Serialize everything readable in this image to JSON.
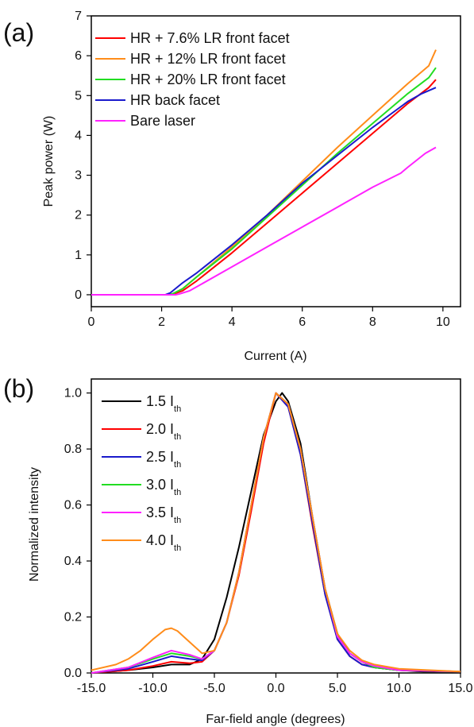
{
  "chart_data": [
    {
      "type": "line",
      "panel_label": "(a)",
      "xlabel": "Current (A)",
      "ylabel": "Peak power (W)",
      "xlim": [
        0,
        10.5
      ],
      "ylim": [
        -0.3,
        7
      ],
      "xticks": [
        0,
        2,
        4,
        6,
        8,
        10
      ],
      "yticks": [
        0,
        1,
        2,
        3,
        4,
        5,
        6,
        7
      ],
      "legend_position": "top-left",
      "series": [
        {
          "name": "HR + 7.6% LR front facet",
          "color": "#ff0000",
          "points": [
            [
              0,
              0
            ],
            [
              2.2,
              0
            ],
            [
              2.3,
              0.01
            ],
            [
              2.6,
              0.1
            ],
            [
              3,
              0.35
            ],
            [
              4,
              1.05
            ],
            [
              5,
              1.8
            ],
            [
              6,
              2.55
            ],
            [
              7,
              3.3
            ],
            [
              8,
              4.05
            ],
            [
              9,
              4.8
            ],
            [
              9.6,
              5.2
            ],
            [
              9.8,
              5.4
            ]
          ]
        },
        {
          "name": "HR + 12% LR front facet",
          "color": "#ff8c1a",
          "points": [
            [
              0,
              0
            ],
            [
              2.2,
              0
            ],
            [
              2.3,
              0.02
            ],
            [
              2.6,
              0.15
            ],
            [
              3,
              0.45
            ],
            [
              4,
              1.2
            ],
            [
              5,
              2.0
            ],
            [
              6,
              2.85
            ],
            [
              7,
              3.7
            ],
            [
              8,
              4.5
            ],
            [
              9,
              5.3
            ],
            [
              9.6,
              5.75
            ],
            [
              9.8,
              6.15
            ]
          ]
        },
        {
          "name": "HR + 20% LR front facet",
          "color": "#22dd22",
          "points": [
            [
              0,
              0
            ],
            [
              2.2,
              0
            ],
            [
              2.3,
              0.02
            ],
            [
              2.6,
              0.15
            ],
            [
              3,
              0.45
            ],
            [
              4,
              1.15
            ],
            [
              5,
              1.95
            ],
            [
              6,
              2.75
            ],
            [
              7,
              3.55
            ],
            [
              8,
              4.3
            ],
            [
              9,
              5.05
            ],
            [
              9.6,
              5.45
            ],
            [
              9.8,
              5.7
            ]
          ]
        },
        {
          "name": "HR back facet",
          "color": "#1a1acc",
          "points": [
            [
              0,
              0
            ],
            [
              2.1,
              0
            ],
            [
              2.25,
              0.05
            ],
            [
              2.6,
              0.3
            ],
            [
              3,
              0.55
            ],
            [
              4,
              1.25
            ],
            [
              5,
              2.0
            ],
            [
              6,
              2.8
            ],
            [
              7,
              3.5
            ],
            [
              8,
              4.2
            ],
            [
              9,
              4.85
            ],
            [
              9.4,
              5.05
            ],
            [
              9.8,
              5.2
            ]
          ]
        },
        {
          "name": "Bare laser",
          "color": "#ff22ff",
          "points": [
            [
              0,
              0
            ],
            [
              2.4,
              0
            ],
            [
              2.5,
              0.02
            ],
            [
              2.8,
              0.1
            ],
            [
              3,
              0.2
            ],
            [
              4,
              0.7
            ],
            [
              5,
              1.2
            ],
            [
              6,
              1.7
            ],
            [
              7,
              2.2
            ],
            [
              8,
              2.7
            ],
            [
              8.8,
              3.05
            ],
            [
              9.0,
              3.2
            ],
            [
              9.5,
              3.55
            ],
            [
              9.8,
              3.7
            ]
          ]
        }
      ]
    },
    {
      "type": "line",
      "panel_label": "(b)",
      "xlabel": "Far-field angle (degrees)",
      "ylabel": "Normalized intensity",
      "xlim": [
        -15,
        15
      ],
      "ylim": [
        0,
        1.05
      ],
      "xticks": [
        -15,
        -10,
        -5,
        0,
        5,
        10,
        15
      ],
      "yticks": [
        0.0,
        0.2,
        0.4,
        0.6,
        0.8,
        1.0
      ],
      "legend_position": "top-left",
      "series": [
        {
          "name": "1.5 I",
          "subscript": "th",
          "color": "#000000",
          "points": [
            [
              -15,
              0.0
            ],
            [
              -12,
              0.01
            ],
            [
              -10,
              0.02
            ],
            [
              -8.5,
              0.03
            ],
            [
              -7,
              0.03
            ],
            [
              -6,
              0.05
            ],
            [
              -5,
              0.12
            ],
            [
              -4,
              0.27
            ],
            [
              -3,
              0.45
            ],
            [
              -2,
              0.65
            ],
            [
              -1,
              0.85
            ],
            [
              0,
              0.97
            ],
            [
              0.5,
              1.0
            ],
            [
              1,
              0.97
            ],
            [
              2,
              0.82
            ],
            [
              3,
              0.55
            ],
            [
              4,
              0.3
            ],
            [
              5,
              0.14
            ],
            [
              6,
              0.07
            ],
            [
              7,
              0.04
            ],
            [
              8,
              0.02
            ],
            [
              10,
              0.01
            ],
            [
              12,
              0.005
            ],
            [
              15,
              0.005
            ]
          ]
        },
        {
          "name": "2.0 I",
          "subscript": "th",
          "color": "#ff0000",
          "points": [
            [
              -15,
              0.0
            ],
            [
              -12,
              0.01
            ],
            [
              -10,
              0.025
            ],
            [
              -8.5,
              0.04
            ],
            [
              -7,
              0.035
            ],
            [
              -6,
              0.04
            ],
            [
              -5,
              0.08
            ],
            [
              -4,
              0.18
            ],
            [
              -3,
              0.35
            ],
            [
              -2,
              0.58
            ],
            [
              -1,
              0.82
            ],
            [
              0,
              1.0
            ],
            [
              1,
              0.95
            ],
            [
              2,
              0.78
            ],
            [
              3,
              0.52
            ],
            [
              4,
              0.28
            ],
            [
              5,
              0.12
            ],
            [
              6,
              0.06
            ],
            [
              7,
              0.03
            ],
            [
              8,
              0.02
            ],
            [
              10,
              0.01
            ],
            [
              15,
              0.005
            ]
          ]
        },
        {
          "name": "2.5 I",
          "subscript": "th",
          "color": "#1a1acc",
          "points": [
            [
              -15,
              0.0
            ],
            [
              -12,
              0.015
            ],
            [
              -10,
              0.04
            ],
            [
              -8.5,
              0.06
            ],
            [
              -7,
              0.05
            ],
            [
              -6,
              0.045
            ],
            [
              -5,
              0.08
            ],
            [
              -4,
              0.18
            ],
            [
              -3,
              0.36
            ],
            [
              -2,
              0.6
            ],
            [
              -1,
              0.84
            ],
            [
              0,
              1.0
            ],
            [
              1,
              0.95
            ],
            [
              2,
              0.78
            ],
            [
              3,
              0.53
            ],
            [
              4,
              0.28
            ],
            [
              5,
              0.12
            ],
            [
              6,
              0.06
            ],
            [
              7,
              0.03
            ],
            [
              8,
              0.02
            ],
            [
              10,
              0.01
            ],
            [
              15,
              0.005
            ]
          ]
        },
        {
          "name": "3.0 I",
          "subscript": "th",
          "color": "#22dd22",
          "points": [
            [
              -15,
              0.0
            ],
            [
              -12,
              0.02
            ],
            [
              -10,
              0.05
            ],
            [
              -8.5,
              0.07
            ],
            [
              -7,
              0.06
            ],
            [
              -6,
              0.05
            ],
            [
              -5,
              0.08
            ],
            [
              -4,
              0.18
            ],
            [
              -3,
              0.36
            ],
            [
              -2,
              0.6
            ],
            [
              -1,
              0.84
            ],
            [
              0,
              1.0
            ],
            [
              1,
              0.96
            ],
            [
              2,
              0.8
            ],
            [
              3,
              0.55
            ],
            [
              4,
              0.3
            ],
            [
              5,
              0.13
            ],
            [
              6,
              0.07
            ],
            [
              7,
              0.04
            ],
            [
              8,
              0.02
            ],
            [
              10,
              0.01
            ],
            [
              15,
              0.005
            ]
          ]
        },
        {
          "name": "3.5 I",
          "subscript": "th",
          "color": "#ff22ff",
          "points": [
            [
              -15,
              0.0
            ],
            [
              -12,
              0.02
            ],
            [
              -10,
              0.055
            ],
            [
              -8.5,
              0.08
            ],
            [
              -7,
              0.065
            ],
            [
              -6,
              0.05
            ],
            [
              -5,
              0.08
            ],
            [
              -4,
              0.18
            ],
            [
              -3,
              0.36
            ],
            [
              -2,
              0.6
            ],
            [
              -1,
              0.84
            ],
            [
              0,
              1.0
            ],
            [
              1,
              0.96
            ],
            [
              2,
              0.8
            ],
            [
              3,
              0.55
            ],
            [
              4,
              0.3
            ],
            [
              5,
              0.13
            ],
            [
              6,
              0.07
            ],
            [
              7,
              0.04
            ],
            [
              8,
              0.025
            ],
            [
              10,
              0.01
            ],
            [
              15,
              0.005
            ]
          ]
        },
        {
          "name": "4.0 I",
          "subscript": "th",
          "color": "#ff8c1a",
          "points": [
            [
              -15,
              0.01
            ],
            [
              -13,
              0.03
            ],
            [
              -12,
              0.05
            ],
            [
              -11,
              0.08
            ],
            [
              -10,
              0.12
            ],
            [
              -9,
              0.155
            ],
            [
              -8.5,
              0.16
            ],
            [
              -8,
              0.15
            ],
            [
              -7,
              0.11
            ],
            [
              -6,
              0.07
            ],
            [
              -5,
              0.08
            ],
            [
              -4,
              0.18
            ],
            [
              -3,
              0.36
            ],
            [
              -2,
              0.6
            ],
            [
              -1,
              0.84
            ],
            [
              0,
              1.0
            ],
            [
              1,
              0.96
            ],
            [
              2,
              0.8
            ],
            [
              3,
              0.55
            ],
            [
              4,
              0.3
            ],
            [
              5,
              0.14
            ],
            [
              6,
              0.08
            ],
            [
              7,
              0.045
            ],
            [
              8,
              0.03
            ],
            [
              10,
              0.015
            ],
            [
              15,
              0.005
            ]
          ]
        }
      ]
    }
  ]
}
